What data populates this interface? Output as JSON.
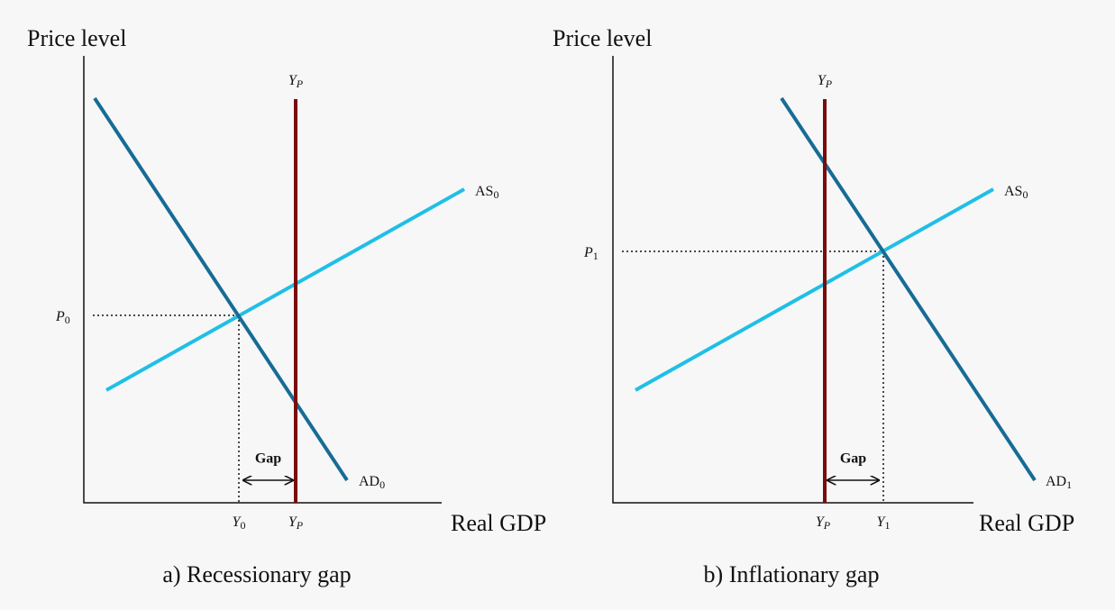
{
  "panels": [
    {
      "y_axis": "Price level",
      "x_axis": "Real GDP",
      "caption": "a) Recessionary gap",
      "gap": "Gap",
      "labels": [
        {
          "base": "Y",
          "sub": "P"
        },
        {
          "base": "AS",
          "sub": "0"
        },
        {
          "base": "AD",
          "sub": "0"
        },
        {
          "base": "P",
          "sub": "0"
        },
        {
          "base": "Y",
          "sub": "0"
        },
        {
          "base": "Y",
          "sub": "P"
        }
      ]
    },
    {
      "y_axis": "Price level",
      "x_axis": "Real GDP",
      "caption": "b) Inflationary gap",
      "gap": "Gap",
      "labels": [
        {
          "base": "Y",
          "sub": "P"
        },
        {
          "base": "AS",
          "sub": "0"
        },
        {
          "base": "AD",
          "sub": "1"
        },
        {
          "base": "P",
          "sub": "1"
        },
        {
          "base": "Y",
          "sub": "P"
        },
        {
          "base": "Y",
          "sub": "1"
        }
      ]
    }
  ]
}
